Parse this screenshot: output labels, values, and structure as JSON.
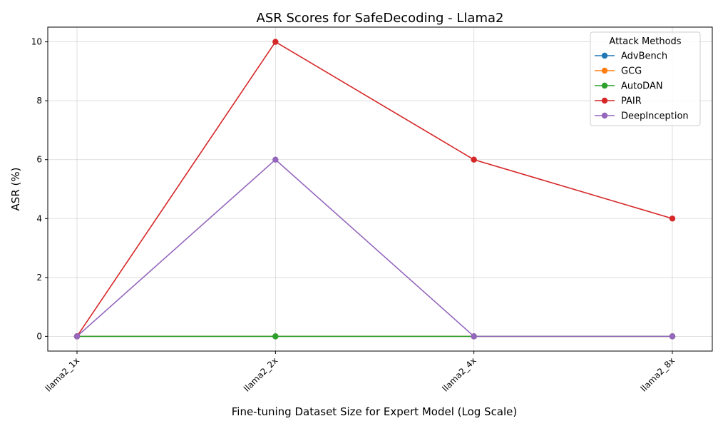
{
  "chart_data": {
    "type": "line",
    "title": "ASR Scores for SafeDecoding - Llama2",
    "xlabel": "Fine-tuning Dataset Size for Expert Model (Log Scale)",
    "ylabel": "ASR (%)",
    "categories": [
      "llama2_1x",
      "llama2_2x",
      "llama2_4x",
      "llama2_8x"
    ],
    "x_values": [
      1,
      2,
      4,
      8
    ],
    "x_scale": "log2",
    "ylim": [
      -0.5,
      10.5
    ],
    "yticks": [
      0,
      2,
      4,
      6,
      8,
      10
    ],
    "grid": true,
    "legend": {
      "title": "Attack Methods",
      "placement": "top-right"
    },
    "series": [
      {
        "name": "AdvBench",
        "color": "#1f77b4",
        "values": [
          0,
          0,
          0,
          0
        ]
      },
      {
        "name": "GCG",
        "color": "#ff7f0e",
        "values": [
          0,
          0,
          0,
          0
        ]
      },
      {
        "name": "AutoDAN",
        "color": "#2ca02c",
        "values": [
          0,
          0,
          0,
          0
        ]
      },
      {
        "name": "PAIR",
        "color": "#d62728",
        "values": [
          0,
          10,
          6,
          4
        ]
      },
      {
        "name": "DeepInception",
        "color": "#9467bd",
        "values": [
          0,
          6,
          0,
          0
        ]
      }
    ]
  }
}
